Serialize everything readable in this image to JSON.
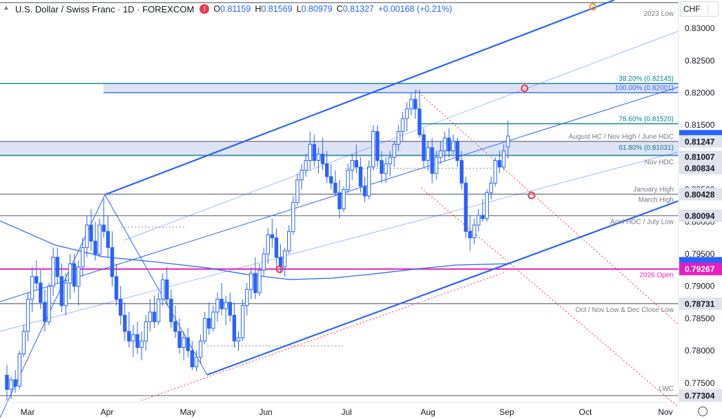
{
  "header": {
    "title": "U.S. Dollar / Swiss Franc · 1D · FOREXCOM",
    "alert_icon": "exclamation-icon",
    "alert_color": "#f23645",
    "open_label": "O",
    "open": "0.81159",
    "high_label": "H",
    "high": "0.81569",
    "low_label": "L",
    "low": "0.80979",
    "close_label": "C",
    "close": "0.81327",
    "change": "+0.00168 (+0.21%)"
  },
  "currency_selector": {
    "value": "CHF"
  },
  "colors": {
    "up": "#2962ff",
    "down": "#2962ff",
    "channel": "#2962ff",
    "teal": "#0a7d8c",
    "gray": "#787b86",
    "magenta": "#e91ebd",
    "red_dot": "#f23645",
    "orange_dot": "#f39c12",
    "zone_fill": "#dfe3f6"
  },
  "chart_data": {
    "type": "candlestick",
    "symbol": "U.S. Dollar / Swiss Franc",
    "timeframe": "1D",
    "x_labels": [
      "Mar",
      "Apr",
      "May",
      "Jun",
      "Jul",
      "Aug",
      "Sep",
      "Oct",
      "Nov"
    ],
    "y_ticks": [
      "0.83000",
      "0.82500",
      "0.82000",
      "0.81500",
      "0.81000",
      "0.80500",
      "0.80000",
      "0.79500",
      "0.79000",
      "0.78500",
      "0.78000",
      "0.77500"
    ],
    "ylim": [
      0.7723,
      0.8344
    ],
    "price_tags": [
      {
        "value": "0.81247",
        "style": "gray"
      },
      {
        "value": "0.81007",
        "style": "gray"
      },
      {
        "value": "0.80834",
        "style": "gray"
      },
      {
        "value": "0.80428",
        "style": "gray"
      },
      {
        "value": "0.80094",
        "style": "gray"
      },
      {
        "value": "0.79267",
        "style": "magenta"
      },
      {
        "value": "0.78731",
        "style": "gray"
      },
      {
        "value": "0.77304",
        "style": "gray"
      }
    ],
    "levels": [
      {
        "label": "2023 Low",
        "price": 0.834,
        "color": "gray"
      },
      {
        "label": "38.20% (0.82145)",
        "price": 0.82145,
        "color": "teal"
      },
      {
        "label": "100.00% (0.82001)",
        "price": 0.82001,
        "color": "channel"
      },
      {
        "label": "78.60% (0.81520)",
        "price": 0.8152,
        "color": "teal"
      },
      {
        "label": "August HC / Nov High / June HDC",
        "price": 0.81247,
        "color": "gray"
      },
      {
        "label": "61.80% (0.81031)",
        "price": 0.81031,
        "color": "teal"
      },
      {
        "label": "Nov HDC",
        "price": 0.81007,
        "color": "gray"
      },
      {
        "label": "January High",
        "price": 0.80428,
        "color": "gray"
      },
      {
        "label": "March High",
        "price": 0.80428,
        "color": "gray"
      },
      {
        "label": "April HDC / July Low",
        "price": 0.80094,
        "color": "gray"
      },
      {
        "label": "2026 Open",
        "price": 0.79267,
        "color": "magenta"
      },
      {
        "label": "Oct / Nov Low & Dec Close Low",
        "price": 0.78731,
        "color": "gray"
      },
      {
        "label": "LWC",
        "price": 0.77304,
        "color": "gray"
      }
    ],
    "candles": [
      [
        0.7762,
        0.7778,
        0.7723,
        0.774
      ],
      [
        0.774,
        0.776,
        0.7725,
        0.7755
      ],
      [
        0.7755,
        0.777,
        0.7735,
        0.7745
      ],
      [
        0.7745,
        0.78,
        0.774,
        0.7795
      ],
      [
        0.7795,
        0.784,
        0.779,
        0.783
      ],
      [
        0.783,
        0.789,
        0.7815,
        0.788
      ],
      [
        0.788,
        0.793,
        0.786,
        0.7915
      ],
      [
        0.7915,
        0.794,
        0.7895,
        0.7905
      ],
      [
        0.7905,
        0.7925,
        0.7865,
        0.7875
      ],
      [
        0.7875,
        0.7895,
        0.783,
        0.7845
      ],
      [
        0.7845,
        0.7905,
        0.784,
        0.79
      ],
      [
        0.79,
        0.796,
        0.7885,
        0.7945
      ],
      [
        0.7945,
        0.796,
        0.7905,
        0.7915
      ],
      [
        0.7915,
        0.7935,
        0.786,
        0.787
      ],
      [
        0.787,
        0.792,
        0.7855,
        0.7905
      ],
      [
        0.7905,
        0.795,
        0.788,
        0.7935
      ],
      [
        0.7935,
        0.795,
        0.789,
        0.79
      ],
      [
        0.79,
        0.794,
        0.787,
        0.793
      ],
      [
        0.793,
        0.7975,
        0.7915,
        0.796
      ],
      [
        0.796,
        0.801,
        0.7945,
        0.7995
      ],
      [
        0.7995,
        0.802,
        0.7955,
        0.797
      ],
      [
        0.797,
        0.8,
        0.794,
        0.795
      ],
      [
        0.795,
        0.8005,
        0.7945,
        0.7995
      ],
      [
        0.7995,
        0.8035,
        0.7975,
        0.7985
      ],
      [
        0.7985,
        0.801,
        0.7945,
        0.796
      ],
      [
        0.796,
        0.7985,
        0.79,
        0.7915
      ],
      [
        0.7915,
        0.7935,
        0.787,
        0.788
      ],
      [
        0.788,
        0.79,
        0.784,
        0.7855
      ],
      [
        0.7855,
        0.7875,
        0.7815,
        0.783
      ],
      [
        0.783,
        0.786,
        0.7805,
        0.7815
      ],
      [
        0.7815,
        0.784,
        0.779,
        0.7825
      ],
      [
        0.7825,
        0.7845,
        0.7795,
        0.7805
      ],
      [
        0.7805,
        0.783,
        0.7785,
        0.7815
      ],
      [
        0.7815,
        0.7855,
        0.78,
        0.7845
      ],
      [
        0.7845,
        0.788,
        0.783,
        0.786
      ],
      [
        0.786,
        0.7885,
        0.7835,
        0.7845
      ],
      [
        0.7845,
        0.789,
        0.784,
        0.788
      ],
      [
        0.788,
        0.792,
        0.787,
        0.791
      ],
      [
        0.791,
        0.793,
        0.787,
        0.788
      ],
      [
        0.788,
        0.7895,
        0.7835,
        0.7845
      ],
      [
        0.7845,
        0.787,
        0.782,
        0.783
      ],
      [
        0.783,
        0.785,
        0.7795,
        0.7805
      ],
      [
        0.7805,
        0.783,
        0.7785,
        0.782
      ],
      [
        0.782,
        0.7835,
        0.779,
        0.78
      ],
      [
        0.78,
        0.7815,
        0.777,
        0.7775
      ],
      [
        0.7775,
        0.78,
        0.7768,
        0.779
      ],
      [
        0.779,
        0.7825,
        0.778,
        0.7815
      ],
      [
        0.7815,
        0.786,
        0.781,
        0.785
      ],
      [
        0.785,
        0.7875,
        0.7825,
        0.7835
      ],
      [
        0.7835,
        0.787,
        0.783,
        0.786
      ],
      [
        0.786,
        0.789,
        0.7845,
        0.788
      ],
      [
        0.788,
        0.7905,
        0.7855,
        0.7865
      ],
      [
        0.7865,
        0.7885,
        0.784,
        0.7875
      ],
      [
        0.7875,
        0.789,
        0.7845,
        0.7855
      ],
      [
        0.7855,
        0.7875,
        0.7805,
        0.7815
      ],
      [
        0.7815,
        0.783,
        0.78,
        0.782
      ],
      [
        0.782,
        0.788,
        0.7815,
        0.787
      ],
      [
        0.787,
        0.7905,
        0.7855,
        0.7895
      ],
      [
        0.7895,
        0.793,
        0.788,
        0.792
      ],
      [
        0.792,
        0.7945,
        0.788,
        0.789
      ],
      [
        0.789,
        0.7935,
        0.7885,
        0.7925
      ],
      [
        0.7925,
        0.796,
        0.7915,
        0.795
      ],
      [
        0.795,
        0.799,
        0.7935,
        0.798
      ],
      [
        0.798,
        0.8005,
        0.796,
        0.7975
      ],
      [
        0.7975,
        0.799,
        0.793,
        0.7945
      ],
      [
        0.7945,
        0.7965,
        0.792,
        0.793
      ],
      [
        0.793,
        0.796,
        0.7915,
        0.7955
      ],
      [
        0.7955,
        0.7995,
        0.795,
        0.7985
      ],
      [
        0.7985,
        0.804,
        0.798,
        0.803
      ],
      [
        0.803,
        0.8075,
        0.8025,
        0.8065
      ],
      [
        0.8065,
        0.809,
        0.805,
        0.808
      ],
      [
        0.808,
        0.8105,
        0.807,
        0.8095
      ],
      [
        0.8095,
        0.814,
        0.808,
        0.812
      ],
      [
        0.812,
        0.8135,
        0.8085,
        0.8095
      ],
      [
        0.8095,
        0.8115,
        0.8075,
        0.8105
      ],
      [
        0.8105,
        0.813,
        0.808,
        0.809
      ],
      [
        0.809,
        0.811,
        0.806,
        0.807
      ],
      [
        0.807,
        0.809,
        0.805,
        0.806
      ],
      [
        0.806,
        0.808,
        0.804,
        0.8045
      ],
      [
        0.8045,
        0.8065,
        0.8005,
        0.802
      ],
      [
        0.802,
        0.8055,
        0.8015,
        0.805
      ],
      [
        0.805,
        0.809,
        0.8045,
        0.808
      ],
      [
        0.808,
        0.8105,
        0.8065,
        0.8095
      ],
      [
        0.8095,
        0.812,
        0.8075,
        0.8085
      ],
      [
        0.8085,
        0.81,
        0.8045,
        0.8055
      ],
      [
        0.8055,
        0.807,
        0.803,
        0.804
      ],
      [
        0.804,
        0.8095,
        0.8035,
        0.8085
      ],
      [
        0.8085,
        0.815,
        0.808,
        0.814
      ],
      [
        0.814,
        0.815,
        0.8085,
        0.8095
      ],
      [
        0.8095,
        0.811,
        0.806,
        0.8075
      ],
      [
        0.8075,
        0.81,
        0.806,
        0.809
      ],
      [
        0.809,
        0.811,
        0.807,
        0.81
      ],
      [
        0.81,
        0.8125,
        0.8085,
        0.812
      ],
      [
        0.812,
        0.815,
        0.811,
        0.814
      ],
      [
        0.814,
        0.817,
        0.8125,
        0.816
      ],
      [
        0.816,
        0.8185,
        0.814,
        0.8175
      ],
      [
        0.8175,
        0.82,
        0.8165,
        0.819
      ],
      [
        0.819,
        0.8205,
        0.816,
        0.8175
      ],
      [
        0.8175,
        0.8205,
        0.813,
        0.8135
      ],
      [
        0.8135,
        0.8145,
        0.8085,
        0.8095
      ],
      [
        0.8095,
        0.8125,
        0.808,
        0.8115
      ],
      [
        0.8115,
        0.813,
        0.806,
        0.8075
      ],
      [
        0.8075,
        0.811,
        0.8065,
        0.81
      ],
      [
        0.81,
        0.8125,
        0.809,
        0.811
      ],
      [
        0.811,
        0.814,
        0.8095,
        0.813
      ],
      [
        0.813,
        0.8145,
        0.81,
        0.811
      ],
      [
        0.811,
        0.8135,
        0.8105,
        0.8125
      ],
      [
        0.8125,
        0.813,
        0.8085,
        0.8095
      ],
      [
        0.8095,
        0.811,
        0.805,
        0.806
      ],
      [
        0.806,
        0.807,
        0.7975,
        0.7985
      ],
      [
        0.7985,
        0.801,
        0.7955,
        0.7975
      ],
      [
        0.7975,
        0.8005,
        0.7965,
        0.7995
      ],
      [
        0.7995,
        0.802,
        0.7985,
        0.801
      ],
      [
        0.801,
        0.8035,
        0.8,
        0.8005
      ],
      [
        0.8005,
        0.805,
        0.8,
        0.8045
      ],
      [
        0.8045,
        0.807,
        0.8035,
        0.806
      ],
      [
        0.806,
        0.81,
        0.8055,
        0.8095
      ],
      [
        0.8095,
        0.811,
        0.8075,
        0.8085
      ],
      [
        0.8085,
        0.812,
        0.808,
        0.811
      ],
      [
        0.8116,
        0.8157,
        0.8098,
        0.8133
      ]
    ]
  }
}
